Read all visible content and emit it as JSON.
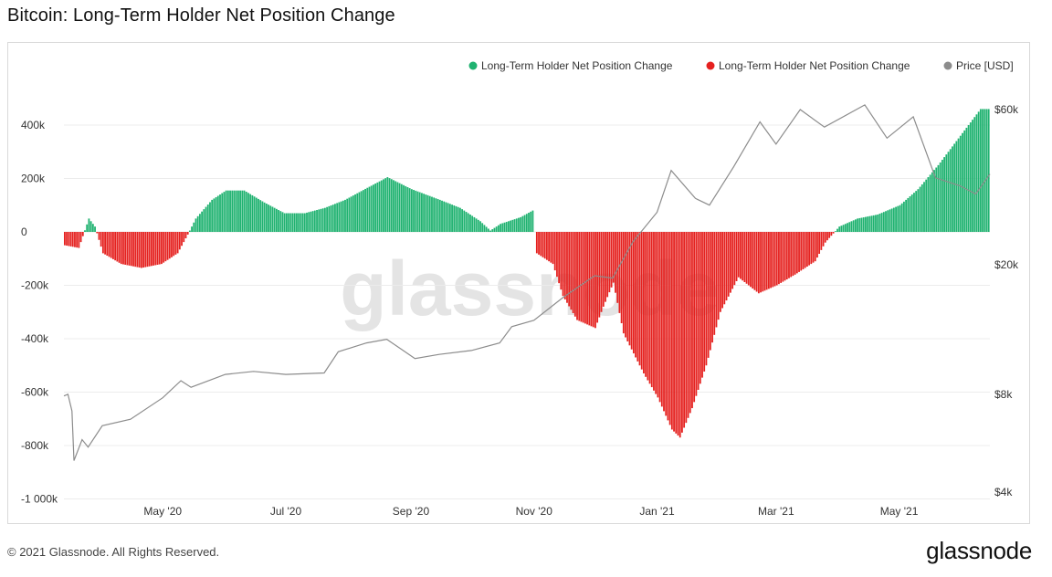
{
  "page": {
    "title": "Bitcoin: Long-Term Holder Net Position Change",
    "copyright": "© 2021 Glassnode. All Rights Reserved.",
    "logo_text": "glassnode",
    "watermark": "glassnode"
  },
  "chart_data": {
    "type": "bar",
    "title": "Bitcoin: Long-Term Holder Net Position Change",
    "x_range": [
      "2020-03-13",
      "2021-06-15"
    ],
    "x_ticks": [
      {
        "date": "2020-05-01",
        "label": "May '20"
      },
      {
        "date": "2020-07-01",
        "label": "Jul '20"
      },
      {
        "date": "2020-09-01",
        "label": "Sep '20"
      },
      {
        "date": "2020-11-01",
        "label": "Nov '20"
      },
      {
        "date": "2021-01-01",
        "label": "Jan '21"
      },
      {
        "date": "2021-03-01",
        "label": "Mar '21"
      },
      {
        "date": "2021-05-01",
        "label": "May '21"
      }
    ],
    "y_left": {
      "range": [
        -1000000,
        450000
      ],
      "ticks": [
        {
          "value": 400000,
          "label": "400k"
        },
        {
          "value": 200000,
          "label": "200k"
        },
        {
          "value": 0,
          "label": "0"
        },
        {
          "value": -200000,
          "label": "-200k"
        },
        {
          "value": -400000,
          "label": "-400k"
        },
        {
          "value": -600000,
          "label": "-600k"
        },
        {
          "value": -800000,
          "label": "-800k"
        },
        {
          "value": -1000000,
          "label": "-1 000k"
        }
      ]
    },
    "y_right": {
      "scale": "log",
      "range": [
        4000,
        60000
      ],
      "ticks": [
        {
          "value": 60000,
          "label": "$60k"
        },
        {
          "value": 20000,
          "label": "$20k"
        },
        {
          "value": 8000,
          "label": "$8k"
        },
        {
          "value": 4000,
          "label": "$4k"
        }
      ]
    },
    "colors": {
      "positive": "#1fb270",
      "negative": "#e5211f",
      "price": "#8c8c8c"
    },
    "legend": {
      "placement": "top-right",
      "items": [
        {
          "label": "Long-Term Holder Net Position Change",
          "color": "#1fb270"
        },
        {
          "label": "Long-Term Holder Net Position Change",
          "color": "#e5211f"
        },
        {
          "label": "Price [USD]",
          "color": "#8c8c8c"
        }
      ]
    },
    "series": [
      {
        "type": "bar",
        "points": [
          [
            "2020-03-13",
            -50000
          ],
          [
            "2020-03-20",
            -60000
          ],
          [
            "2020-03-25",
            50000
          ],
          [
            "2020-03-28",
            20000
          ],
          [
            "2020-04-01",
            -80000
          ],
          [
            "2020-04-10",
            -120000
          ],
          [
            "2020-04-20",
            -135000
          ],
          [
            "2020-04-30",
            -120000
          ],
          [
            "2020-05-08",
            -80000
          ],
          [
            "2020-05-13",
            -10000
          ],
          [
            "2020-05-17",
            50000
          ],
          [
            "2020-05-25",
            120000
          ],
          [
            "2020-06-01",
            155000
          ],
          [
            "2020-06-10",
            155000
          ],
          [
            "2020-06-20",
            110000
          ],
          [
            "2020-06-30",
            70000
          ],
          [
            "2020-07-10",
            70000
          ],
          [
            "2020-07-20",
            90000
          ],
          [
            "2020-07-30",
            120000
          ],
          [
            "2020-08-10",
            165000
          ],
          [
            "2020-08-20",
            205000
          ],
          [
            "2020-09-01",
            160000
          ],
          [
            "2020-09-15",
            120000
          ],
          [
            "2020-09-25",
            90000
          ],
          [
            "2020-10-05",
            40000
          ],
          [
            "2020-10-10",
            5000
          ],
          [
            "2020-10-15",
            30000
          ],
          [
            "2020-10-25",
            55000
          ],
          [
            "2020-10-31",
            80000
          ],
          [
            "2020-11-02",
            -80000
          ],
          [
            "2020-11-10",
            -120000
          ],
          [
            "2020-11-15",
            -240000
          ],
          [
            "2020-11-22",
            -330000
          ],
          [
            "2020-12-01",
            -360000
          ],
          [
            "2020-12-05",
            -280000
          ],
          [
            "2020-12-10",
            -190000
          ],
          [
            "2020-12-15",
            -380000
          ],
          [
            "2020-12-25",
            -530000
          ],
          [
            "2021-01-01",
            -620000
          ],
          [
            "2021-01-08",
            -740000
          ],
          [
            "2021-01-12",
            -770000
          ],
          [
            "2021-01-18",
            -660000
          ],
          [
            "2021-01-25",
            -500000
          ],
          [
            "2021-02-01",
            -300000
          ],
          [
            "2021-02-10",
            -170000
          ],
          [
            "2021-02-20",
            -230000
          ],
          [
            "2021-03-01",
            -200000
          ],
          [
            "2021-03-10",
            -160000
          ],
          [
            "2021-03-20",
            -110000
          ],
          [
            "2021-03-25",
            -40000
          ],
          [
            "2021-04-01",
            20000
          ],
          [
            "2021-04-10",
            50000
          ],
          [
            "2021-04-20",
            65000
          ],
          [
            "2021-05-01",
            100000
          ],
          [
            "2021-05-10",
            160000
          ],
          [
            "2021-05-20",
            250000
          ],
          [
            "2021-06-01",
            370000
          ],
          [
            "2021-06-10",
            460000
          ]
        ]
      },
      {
        "type": "line",
        "name": "Price [USD]",
        "points": [
          [
            "2020-03-13",
            7900
          ],
          [
            "2020-03-15",
            8000
          ],
          [
            "2020-03-17",
            7100
          ],
          [
            "2020-03-18",
            5000
          ],
          [
            "2020-03-22",
            5800
          ],
          [
            "2020-03-25",
            5500
          ],
          [
            "2020-04-01",
            6400
          ],
          [
            "2020-04-15",
            6700
          ],
          [
            "2020-05-01",
            7800
          ],
          [
            "2020-05-10",
            8800
          ],
          [
            "2020-05-15",
            8400
          ],
          [
            "2020-06-01",
            9200
          ],
          [
            "2020-06-15",
            9400
          ],
          [
            "2020-07-01",
            9200
          ],
          [
            "2020-07-20",
            9300
          ],
          [
            "2020-07-27",
            10800
          ],
          [
            "2020-08-10",
            11500
          ],
          [
            "2020-08-20",
            11800
          ],
          [
            "2020-09-03",
            10300
          ],
          [
            "2020-09-15",
            10600
          ],
          [
            "2020-10-01",
            10900
          ],
          [
            "2020-10-15",
            11500
          ],
          [
            "2020-10-21",
            12900
          ],
          [
            "2020-11-01",
            13500
          ],
          [
            "2020-11-15",
            15800
          ],
          [
            "2020-12-01",
            18500
          ],
          [
            "2020-12-10",
            18200
          ],
          [
            "2020-12-20",
            23500
          ],
          [
            "2021-01-01",
            29000
          ],
          [
            "2021-01-08",
            39000
          ],
          [
            "2021-01-20",
            32000
          ],
          [
            "2021-01-27",
            30500
          ],
          [
            "2021-02-08",
            40000
          ],
          [
            "2021-02-21",
            55000
          ],
          [
            "2021-03-01",
            47000
          ],
          [
            "2021-03-13",
            60000
          ],
          [
            "2021-03-25",
            53000
          ],
          [
            "2021-04-14",
            62000
          ],
          [
            "2021-04-25",
            49000
          ],
          [
            "2021-05-08",
            57000
          ],
          [
            "2021-05-19",
            37000
          ],
          [
            "2021-05-31",
            35000
          ],
          [
            "2021-06-08",
            33000
          ],
          [
            "2021-06-15",
            38000
          ]
        ]
      }
    ]
  }
}
